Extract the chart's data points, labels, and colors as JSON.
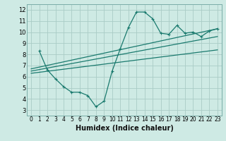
{
  "xlabel": "Humidex (Indice chaleur)",
  "bg_color": "#ceeae4",
  "grid_color": "#aaccc6",
  "line_color": "#1a7a6e",
  "xlim": [
    -0.5,
    23.5
  ],
  "ylim": [
    2.5,
    12.5
  ],
  "xticks": [
    0,
    1,
    2,
    3,
    4,
    5,
    6,
    7,
    8,
    9,
    10,
    11,
    12,
    13,
    14,
    15,
    16,
    17,
    18,
    19,
    20,
    21,
    22,
    23
  ],
  "yticks": [
    3,
    4,
    5,
    6,
    7,
    8,
    9,
    10,
    11,
    12
  ],
  "curve1_x": [
    1,
    2,
    3,
    4,
    5,
    6,
    7,
    8,
    9,
    10,
    11,
    12,
    13,
    14,
    15,
    16,
    17,
    18,
    19,
    20,
    21,
    22,
    23
  ],
  "curve1_y": [
    8.3,
    6.6,
    5.8,
    5.1,
    4.6,
    4.6,
    4.3,
    3.3,
    3.8,
    6.5,
    8.5,
    10.4,
    11.8,
    11.8,
    11.2,
    9.9,
    9.8,
    10.6,
    9.9,
    10.0,
    9.6,
    10.1,
    10.3
  ],
  "line1_x": [
    0,
    23
  ],
  "line1_y": [
    6.5,
    9.6
  ],
  "line2_x": [
    0,
    23
  ],
  "line2_y": [
    6.7,
    10.3
  ],
  "line3_x": [
    0,
    23
  ],
  "line3_y": [
    6.3,
    8.4
  ],
  "xlabel_fontsize": 7,
  "tick_fontsize": 5.5,
  "ytick_fontsize": 6,
  "lw": 0.9,
  "ms": 3
}
